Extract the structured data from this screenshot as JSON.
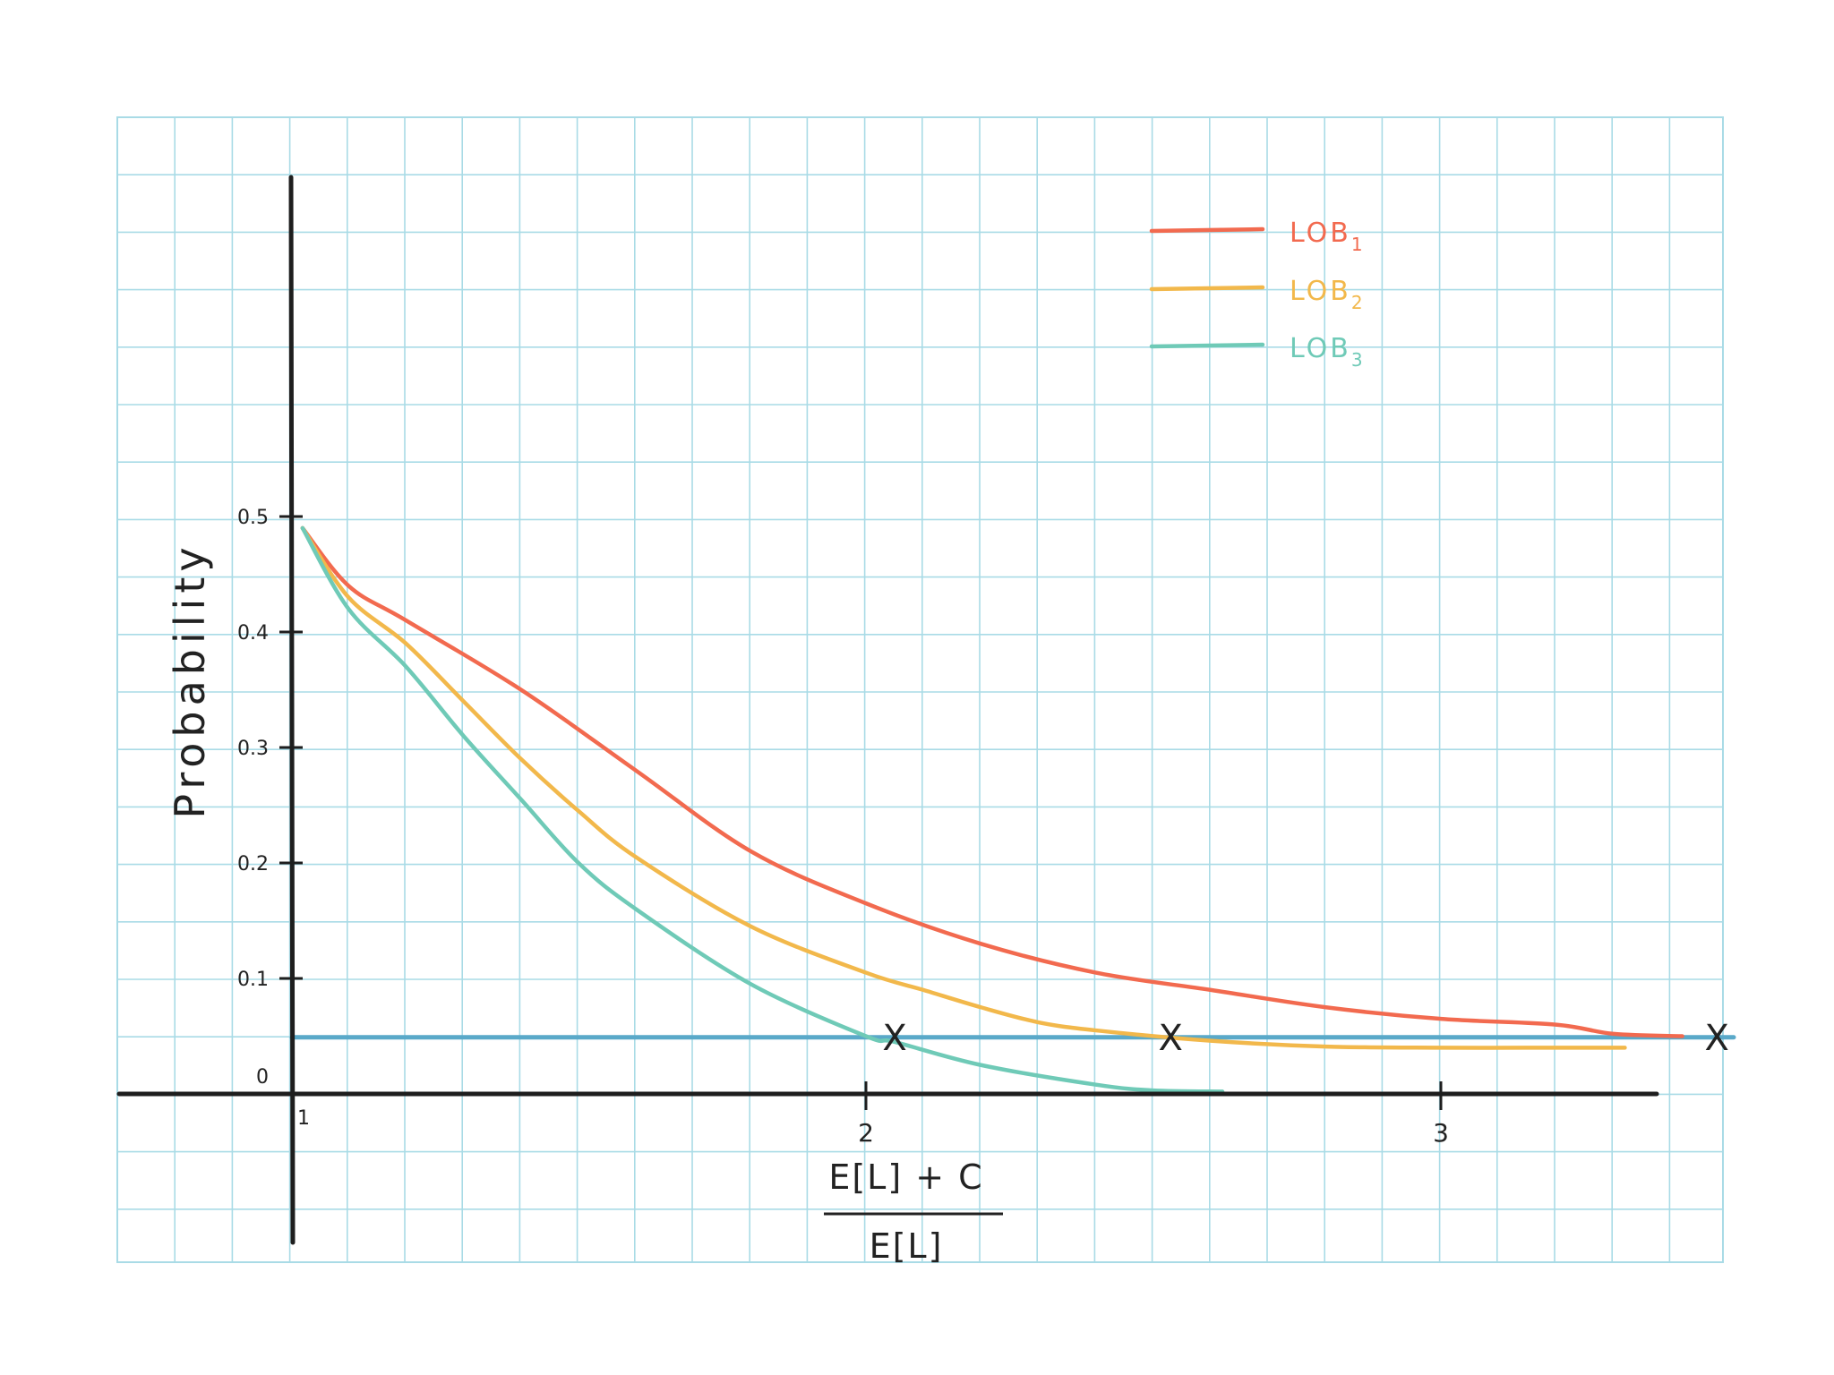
{
  "chart_data": {
    "type": "line",
    "title": "",
    "ylabel": "Probability",
    "xlabel": {
      "numerator": "E[L] + C",
      "denominator": "E[L]"
    },
    "xlim": [
      0.7,
      3.4
    ],
    "ylim": [
      -0.15,
      0.75
    ],
    "x_ticks": [
      {
        "value": 1,
        "label": "1"
      },
      {
        "value": 2,
        "label": "2"
      },
      {
        "value": 3,
        "label": "3"
      }
    ],
    "y_ticks": [
      {
        "value": 0,
        "label": "0"
      },
      {
        "value": 0.1,
        "label": "0.1"
      },
      {
        "value": 0.2,
        "label": "0.2"
      },
      {
        "value": 0.3,
        "label": "0.3"
      },
      {
        "value": 0.4,
        "label": "0.4"
      },
      {
        "value": 0.5,
        "label": "0.5"
      }
    ],
    "grid": true,
    "legend_position": "top-right",
    "series": [
      {
        "name": "LOB1",
        "color": "#f26a4f",
        "x": [
          1.02,
          1.1,
          1.2,
          1.4,
          1.6,
          1.8,
          2.0,
          2.2,
          2.4,
          2.6,
          2.8,
          3.0,
          3.2,
          3.3,
          3.42
        ],
        "y": [
          0.49,
          0.44,
          0.41,
          0.35,
          0.28,
          0.21,
          0.165,
          0.13,
          0.105,
          0.09,
          0.075,
          0.065,
          0.06,
          0.052,
          0.05
        ]
      },
      {
        "name": "LOB2",
        "color": "#f2b84b",
        "x": [
          1.02,
          1.1,
          1.2,
          1.3,
          1.4,
          1.5,
          1.6,
          1.8,
          2.0,
          2.1,
          2.2,
          2.3,
          2.4,
          2.6,
          2.8,
          3.0,
          3.15,
          3.32
        ],
        "y": [
          0.49,
          0.43,
          0.39,
          0.34,
          0.29,
          0.245,
          0.205,
          0.145,
          0.105,
          0.09,
          0.075,
          0.062,
          0.055,
          0.046,
          0.041,
          0.04,
          0.04,
          0.04
        ]
      },
      {
        "name": "LOB3",
        "color": "#6fcab7",
        "x": [
          1.02,
          1.1,
          1.2,
          1.3,
          1.4,
          1.5,
          1.6,
          1.8,
          2.0,
          2.05,
          2.2,
          2.4,
          2.5,
          2.62
        ],
        "y": [
          0.49,
          0.42,
          0.37,
          0.31,
          0.255,
          0.2,
          0.16,
          0.095,
          0.05,
          0.045,
          0.025,
          0.008,
          0.003,
          0.002
        ]
      }
    ],
    "threshold_line": {
      "y": 0.049,
      "color": "#5aa9c9"
    },
    "intersection_markers": [
      {
        "x": 2.05,
        "y": 0.049,
        "label": "X"
      },
      {
        "x": 2.53,
        "y": 0.049,
        "label": "X"
      },
      {
        "x": 3.48,
        "y": 0.049,
        "label": "X"
      }
    ]
  }
}
